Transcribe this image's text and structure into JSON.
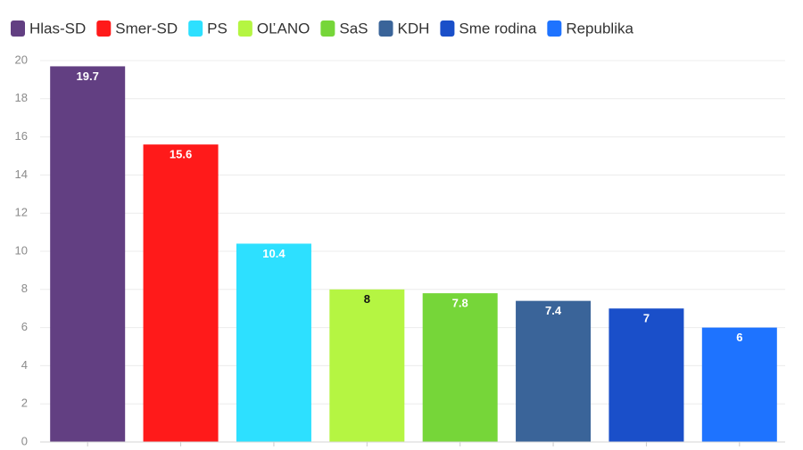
{
  "chart_data": {
    "type": "bar",
    "categories": [
      "Hlas-SD",
      "Smer-SD",
      "PS",
      "OĽANO",
      "SaS",
      "KDH",
      "Sme rodina",
      "Republika"
    ],
    "values": [
      19.7,
      15.6,
      10.4,
      8,
      7.8,
      7.4,
      7,
      6
    ],
    "data_labels": [
      "19.7",
      "15.6",
      "10.4",
      "8",
      "7.8",
      "7.4",
      "7",
      "6"
    ],
    "colors": [
      "#623f82",
      "#ff1a1a",
      "#2de0ff",
      "#b5f542",
      "#76d639",
      "#3a6499",
      "#1a4fc9",
      "#1e73ff"
    ],
    "label_colors": [
      "#ffffff",
      "#ffffff",
      "#ffffff",
      "#111111",
      "#ffffff",
      "#ffffff",
      "#ffffff",
      "#ffffff"
    ],
    "title": "",
    "xlabel": "",
    "ylabel": "",
    "ylim": [
      0,
      20
    ],
    "yticks": [
      0,
      2,
      4,
      6,
      8,
      10,
      12,
      14,
      16,
      18,
      20
    ],
    "ytick_labels": [
      "0",
      "2",
      "4",
      "6",
      "8",
      "10",
      "12",
      "14",
      "16",
      "18",
      "20"
    ],
    "grid": true,
    "legend_position": "top-left"
  }
}
